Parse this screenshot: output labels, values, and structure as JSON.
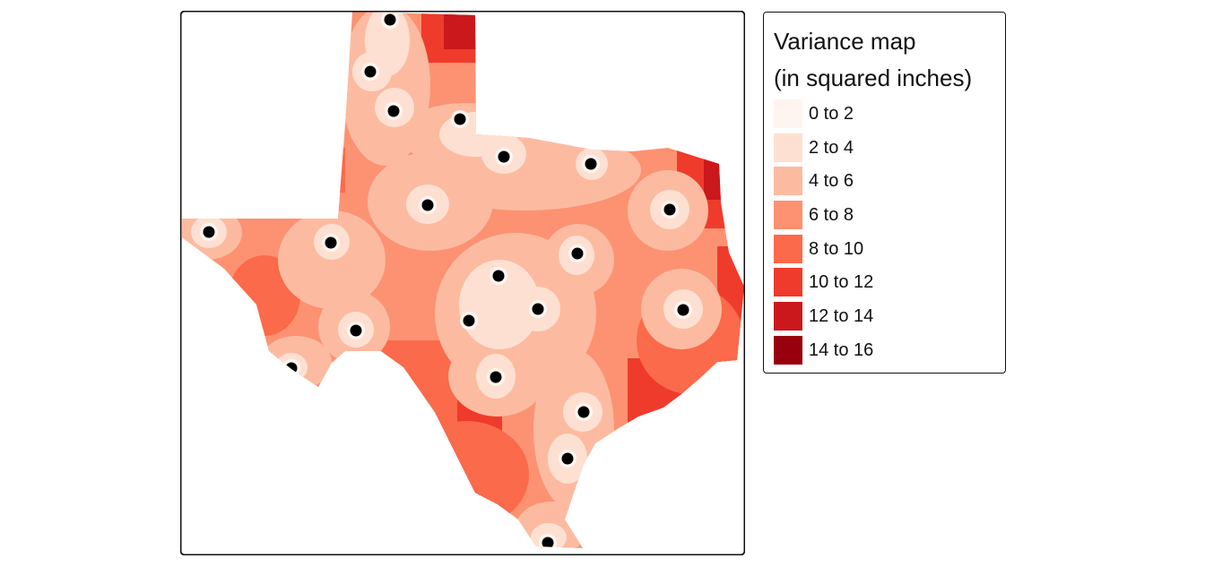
{
  "map": {
    "region_name": "Texas",
    "classes": [
      {
        "label": "0 to 2",
        "color": "#fff5f0"
      },
      {
        "label": "2 to 4",
        "color": "#fee0d2"
      },
      {
        "label": "4 to 6",
        "color": "#fcbba1"
      },
      {
        "label": "6 to 8",
        "color": "#fc9272"
      },
      {
        "label": "8 to 10",
        "color": "#fb6a4a"
      },
      {
        "label": "10 to 12",
        "color": "#ef3b2c"
      },
      {
        "label": "12 to 14",
        "color": "#cb181d"
      },
      {
        "label": "14 to 16",
        "color": "#99000d"
      }
    ],
    "sample_point_color": "#000000",
    "sample_point_count": 21
  },
  "legend": {
    "title_line1": "Variance map",
    "title_line2": "(in squared inches)"
  }
}
